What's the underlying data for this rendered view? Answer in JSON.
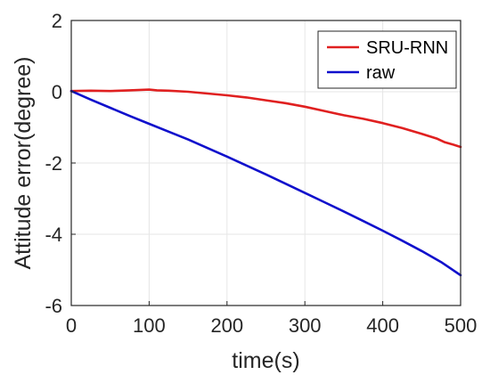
{
  "chart_data": {
    "type": "line",
    "title": "",
    "xlabel": "time(s)",
    "ylabel": "Attitude error(degree)",
    "xlim": [
      0,
      500
    ],
    "ylim": [
      -6,
      2
    ],
    "xticks": [
      0,
      100,
      200,
      300,
      400,
      500
    ],
    "yticks": [
      -6,
      -4,
      -2,
      0,
      2
    ],
    "grid": true,
    "legend_position": "top-right",
    "series": [
      {
        "name": "SRU-RNN",
        "color": "#e02020",
        "x": [
          0,
          25,
          50,
          75,
          100,
          110,
          125,
          150,
          175,
          200,
          225,
          250,
          275,
          300,
          325,
          350,
          375,
          400,
          425,
          450,
          470,
          480,
          490,
          500
        ],
        "y": [
          0.02,
          0.03,
          0.02,
          0.04,
          0.06,
          0.04,
          0.03,
          0.0,
          -0.05,
          -0.1,
          -0.16,
          -0.24,
          -0.32,
          -0.42,
          -0.54,
          -0.66,
          -0.76,
          -0.88,
          -1.02,
          -1.18,
          -1.32,
          -1.42,
          -1.48,
          -1.55
        ]
      },
      {
        "name": "raw",
        "color": "#1010cc",
        "x": [
          0,
          25,
          50,
          75,
          100,
          125,
          150,
          175,
          200,
          225,
          250,
          275,
          300,
          325,
          350,
          375,
          400,
          425,
          450,
          475,
          500
        ],
        "y": [
          0.02,
          -0.22,
          -0.45,
          -0.68,
          -0.9,
          -1.12,
          -1.34,
          -1.58,
          -1.82,
          -2.07,
          -2.32,
          -2.58,
          -2.84,
          -3.1,
          -3.36,
          -3.63,
          -3.9,
          -4.18,
          -4.47,
          -4.78,
          -5.15
        ]
      }
    ]
  }
}
